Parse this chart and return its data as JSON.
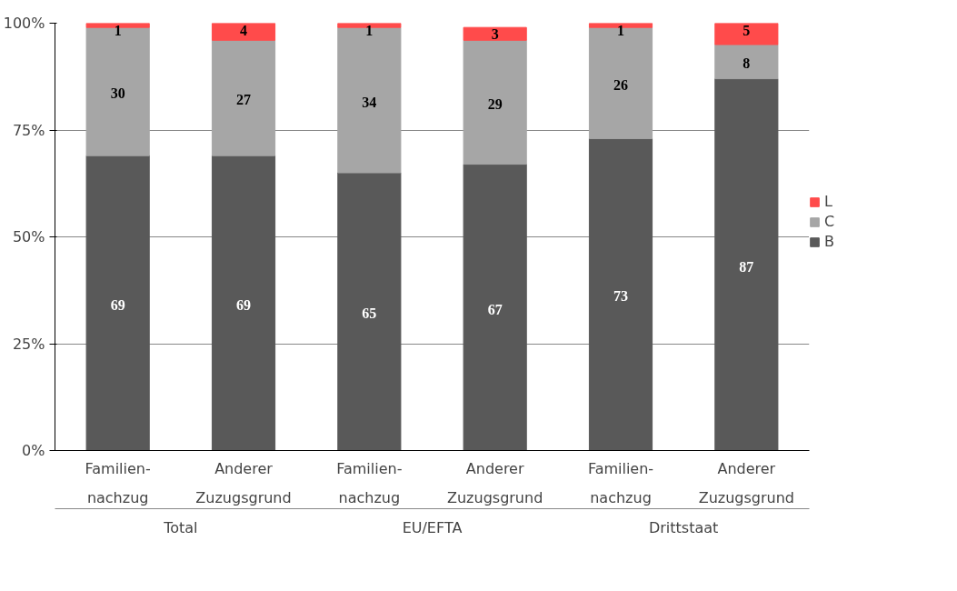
{
  "chart_data": {
    "type": "bar",
    "stacked": true,
    "categories": [
      "Familien-\nnachzug",
      "Anderer\nZuzugsgrund",
      "Familien-\nnachzug",
      "Anderer\nZuzugsgrund",
      "Familien-\nnachzug",
      "Anderer\nZuzugsgrund"
    ],
    "series": [
      {
        "name": "B",
        "color": "#595959",
        "values": [
          69,
          69,
          65,
          67,
          73,
          87
        ]
      },
      {
        "name": "C",
        "color": "#a6a6a6",
        "values": [
          30,
          27,
          34,
          29,
          26,
          8
        ]
      },
      {
        "name": "L",
        "color": "#ff4b4b",
        "values": [
          1,
          4,
          1,
          3,
          1,
          5
        ]
      }
    ],
    "annotations": [
      "Total",
      "EU/EFTA",
      "Drittstaat"
    ],
    "ylim": [
      0,
      100
    ],
    "yticks": [
      {
        "value": 0,
        "label": "0%"
      },
      {
        "value": 25,
        "label": "25%"
      },
      {
        "value": 50,
        "label": "50%"
      },
      {
        "value": 75,
        "label": "75%"
      },
      {
        "value": 100,
        "label": "100%"
      }
    ],
    "grid": "y",
    "legend": "right",
    "data_labels": true
  }
}
